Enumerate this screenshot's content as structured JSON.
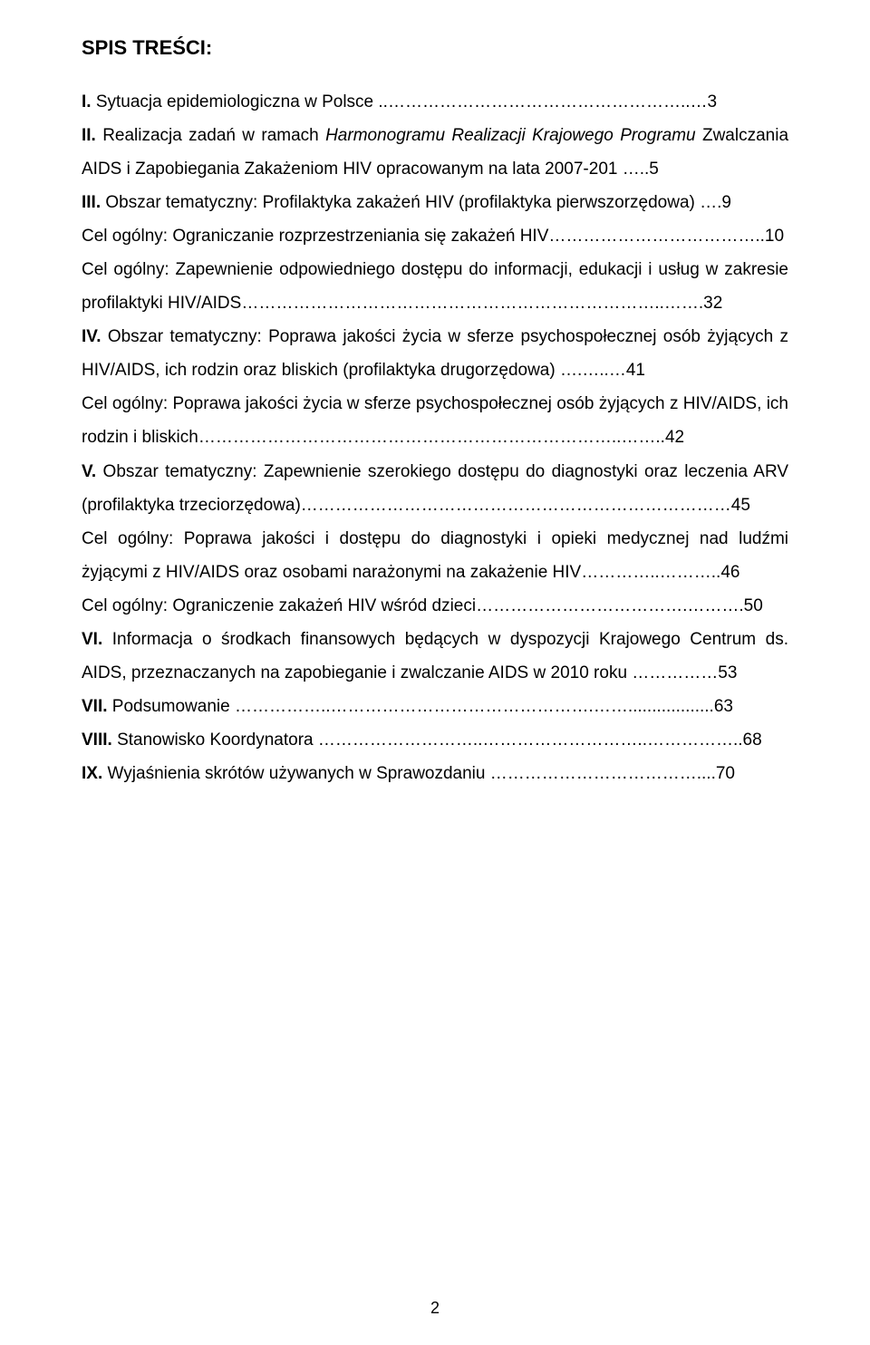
{
  "heading": "SPIS TREŚCI:",
  "entries": [
    {
      "prefix": "I.",
      "prefixBold": true,
      "text": " Sytuacja epidemiologiczna w Polsce ..……………………………………………..…3",
      "italicRange": null
    },
    {
      "prefix": "II.",
      "prefixBold": true,
      "text": " Realizacja zadań w ramach ",
      "tail": " Zwalczania AIDS i Zapobiegania Zakażeniom HIV opracowanym na lata 2007-201 …..5",
      "italic": "Harmonogramu Realizacji Krajowego Programu"
    },
    {
      "prefix": "III.",
      "prefixBold": true,
      "text": " Obszar tematyczny: Profilaktyka zakażeń HIV (profilaktyka pierwszorzędowa) ….9"
    },
    {
      "prefix": "",
      "prefixBold": false,
      "text": "Cel ogólny: Ograniczanie rozprzestrzeniania się zakażeń HIV………………………………..10"
    },
    {
      "prefix": "",
      "prefixBold": false,
      "text": "Cel ogólny: Zapewnienie odpowiedniego dostępu do informacji, edukacji i usług w zakresie profilaktyki HIV/AIDS………………………………………………………………..…….32"
    },
    {
      "prefix": "IV.",
      "prefixBold": true,
      "text": " Obszar tematyczny: Poprawa jakości życia w sferze psychospołecznej osób żyjących z HIV/AIDS, ich rodzin oraz bliskich (profilaktyka drugorzędowa) ….…..…41"
    },
    {
      "prefix": "",
      "prefixBold": false,
      "text": "Cel ogólny: Poprawa jakości życia w sferze psychospołecznej osób żyjących z HIV/AIDS, ich rodzin i bliskich………………………………………………………………..……..42"
    },
    {
      "prefix": "V.",
      "prefixBold": true,
      "text": " Obszar tematyczny: Zapewnienie szerokiego dostępu do diagnostyki oraz leczenia ARV (profilaktyka trzeciorzędowa)…………………………………………………………………45"
    },
    {
      "prefix": "",
      "prefixBold": false,
      "text": "Cel ogólny: Poprawa jakości i dostępu do diagnostyki i opieki medycznej nad ludźmi żyjącymi z HIV/AIDS oraz osobami narażonymi na zakażenie HIV…………..………..46"
    },
    {
      "prefix": "",
      "prefixBold": false,
      "text": "Cel ogólny: Ograniczenie zakażeń HIV wśród dzieci……………………………….……….50"
    },
    {
      "prefix": "VI.",
      "prefixBold": true,
      "text": " Informacja o środkach finansowych będących w dyspozycji Krajowego Centrum ds. AIDS, przeznaczanych na zapobieganie i zwalczanie AIDS w 2010 roku ……………53"
    },
    {
      "prefix": "VII.",
      "prefixBold": true,
      "text": " Podsumowanie ……………..……………………………………….……..................63"
    },
    {
      "prefix": "VIII.",
      "prefixBold": true,
      "text": " Stanowisko Koordynatora ………………………..………………………..……………..68"
    },
    {
      "prefix": "IX.",
      "prefixBold": true,
      "text": " Wyjaśnienia skrótów używanych w Sprawozdaniu ………………………………....70"
    }
  ],
  "pageNumber": "2",
  "colors": {
    "text": "#000000",
    "background": "#ffffff"
  },
  "typography": {
    "headingSize": 22,
    "bodySize": 19,
    "lineHeight": 1.95
  }
}
